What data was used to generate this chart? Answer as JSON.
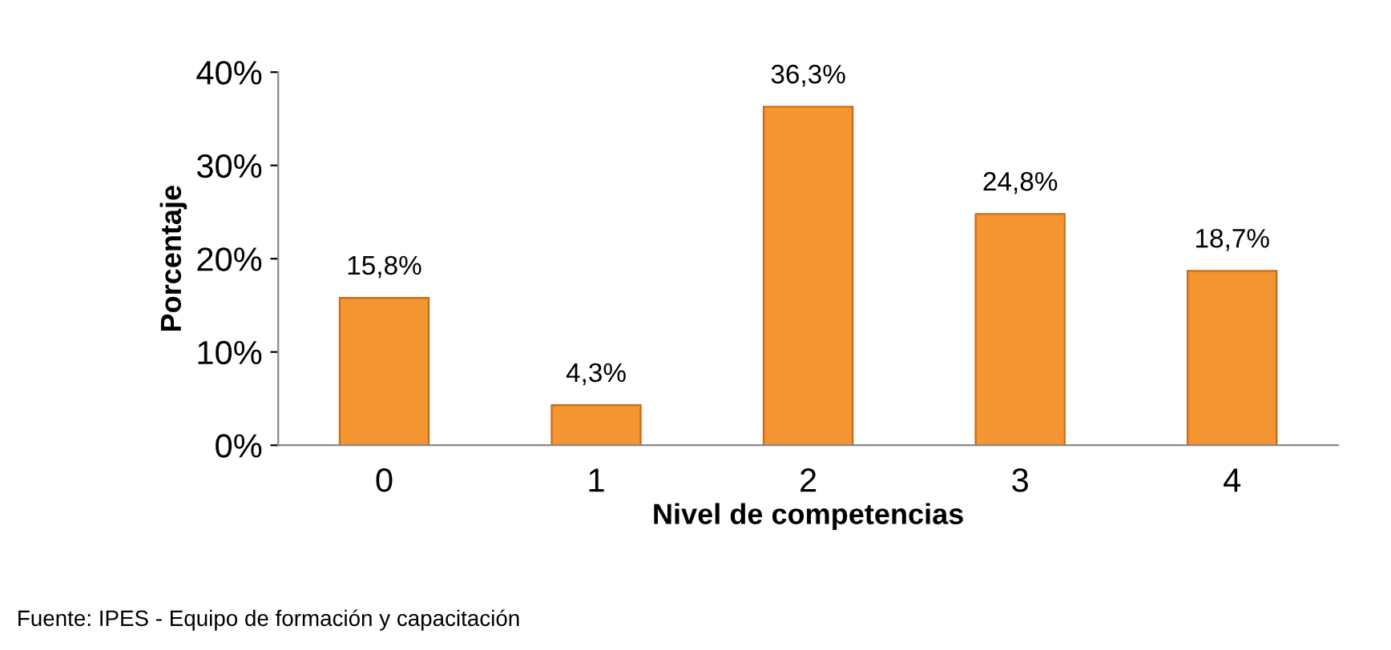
{
  "chart_data": {
    "type": "bar",
    "xlabel": "Nivel de competencias",
    "ylabel": "Porcentaje",
    "categories": [
      "0",
      "1",
      "2",
      "3",
      "4"
    ],
    "values": [
      15.8,
      4.3,
      36.3,
      24.8,
      18.7
    ],
    "value_labels": [
      "15,8%",
      "4,3%",
      "36,3%",
      "24,8%",
      "18,7%"
    ],
    "color": "#f39530",
    "ylim": [
      0,
      40
    ],
    "yticks": [
      {
        "value": 0,
        "label": "0%"
      },
      {
        "value": 10,
        "label": "10%"
      },
      {
        "value": 20,
        "label": "20%"
      },
      {
        "value": 30,
        "label": "30%"
      },
      {
        "value": 40,
        "label": "40%"
      }
    ],
    "grid": false,
    "legend": false,
    "annotations": [
      "Fuente: IPES - Equipo de formación y capacitación"
    ]
  }
}
